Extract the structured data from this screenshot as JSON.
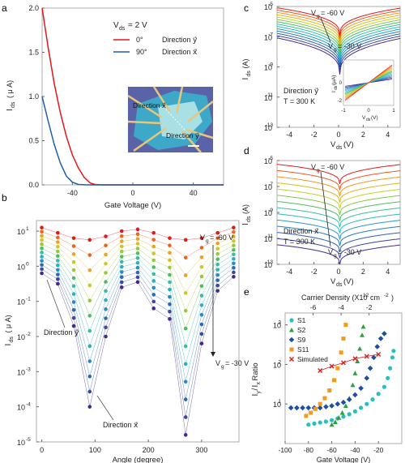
{
  "chart_data": [
    {
      "panel": "a",
      "type": "line",
      "legend_title": "V",
      "legend_title_sub": "ds",
      "legend_title_value": "= 2 V",
      "ylabel": "I",
      "ylabel_sub": "ds",
      "ylabel_unit": "( μ A)",
      "xlabel": "Gate Voltage (V)",
      "xlim": [
        -60,
        60
      ],
      "ylim": [
        0,
        2.0
      ],
      "xticks": [
        "-40",
        "0",
        "40"
      ],
      "yticks": [
        "0.0",
        "0.5",
        "1.0",
        "1.5",
        "2.0"
      ],
      "inset_labels": [
        "Direction x⃗",
        "Direction y⃗"
      ],
      "series": [
        {
          "name": "0°",
          "label": "Direction y⃗",
          "color": "#e8141c",
          "points": [
            [
              -60,
              2.0
            ],
            [
              -56,
              1.55
            ],
            [
              -52,
              1.15
            ],
            [
              -48,
              0.82
            ],
            [
              -44,
              0.55
            ],
            [
              -40,
              0.34
            ],
            [
              -36,
              0.19
            ],
            [
              -32,
              0.08
            ],
            [
              -28,
              0.02
            ],
            [
              -25,
              0.005
            ],
            [
              -20,
              0.0
            ],
            [
              60,
              0.0
            ]
          ]
        },
        {
          "name": "90°",
          "label": "Direction x⃗",
          "color": "#1f5fa8",
          "points": [
            [
              -60,
              1.0
            ],
            [
              -56,
              0.72
            ],
            [
              -52,
              0.46
            ],
            [
              -48,
              0.25
            ],
            [
              -44,
              0.1
            ],
            [
              -40,
              0.03
            ],
            [
              -36,
              0.005
            ],
            [
              -30,
              0.0
            ],
            [
              60,
              0.0
            ]
          ]
        }
      ]
    },
    {
      "panel": "b",
      "type": "scatter",
      "ylabel": "I",
      "ylabel_sub": "ds",
      "ylabel_unit": "( μ A)",
      "xlabel": "Angle (degree)",
      "xlim": [
        -10,
        370
      ],
      "ylim_log10": [
        -5,
        1.3
      ],
      "xticks": [
        "0",
        "100",
        "200",
        "300"
      ],
      "yticks": [
        "10",
        "10",
        "10",
        "10",
        "10",
        "10",
        "10"
      ],
      "ytick_exps": [
        "1",
        "0",
        "-1",
        "-2",
        "-3",
        "-4",
        "-5"
      ],
      "angles": [
        0,
        30,
        60,
        90,
        120,
        150,
        180,
        210,
        240,
        270,
        300,
        330,
        360
      ],
      "vg_levels": 12,
      "top_log": [
        1.1,
        0.95,
        0.8,
        0.75,
        0.85,
        1.0,
        1.05,
        0.95,
        0.8,
        0.75,
        0.8,
        0.95,
        1.1
      ],
      "bottom_log": [
        -0.2,
        -0.5,
        -1.7,
        -4.0,
        -2.0,
        -0.6,
        -0.45,
        -1.2,
        -1.5,
        -4.8,
        -2.2,
        -0.7,
        -0.3
      ],
      "annotations": [
        "V",
        "g",
        "= -60 V",
        "= -30 V",
        "Direction y⃗",
        "Direction x⃗"
      ]
    },
    {
      "panel": "c",
      "type": "line",
      "title": "Direction y⃗",
      "subtitle": "T = 300 K",
      "ylabel": "I",
      "ylabel_sub": "ds",
      "ylabel_unit": " (A)",
      "xlabel": "V",
      "xlabel_sub": "ds",
      "xlabel_unit": " (V)",
      "xlim": [
        -5,
        5
      ],
      "ylim_log10": [
        -13,
        -5
      ],
      "xticks": [
        "-4",
        "-2",
        "0",
        "2",
        "4"
      ],
      "ytick_exps": [
        "-5",
        "-7",
        "-9",
        "-11",
        "-13"
      ],
      "vg_top": "= -60 V",
      "vg_bottom": "= -30 V",
      "curves": 14,
      "edge_top": -5.1,
      "edge_bottom": -7.1,
      "dip_top": -6.9,
      "dip_bottom": -9.5,
      "inset": {
        "ylabel": "I",
        "ylabel_sub": "ds",
        "ylabel_unit": " (μA)",
        "xlabel": "V",
        "xlabel_sub": "ds",
        "xlabel_unit": " (V)",
        "xticks": [
          "-1",
          "0",
          "1"
        ],
        "yticks": [
          "2",
          "0",
          "-2"
        ]
      }
    },
    {
      "panel": "d",
      "type": "line",
      "title": "Direction x⃗",
      "subtitle": "T = 300 K",
      "ylabel": "I",
      "ylabel_sub": "ds",
      "ylabel_unit": " (A)",
      "xlabel": "V",
      "xlabel_sub": "ds",
      "xlabel_unit": " (V)",
      "xlim": [
        -5,
        5
      ],
      "ylim_log10": [
        -13,
        -5
      ],
      "xticks": [
        "-4",
        "-2",
        "0",
        "2",
        "4"
      ],
      "ytick_exps": [
        "-5",
        "-7",
        "-9",
        "-11",
        "-13"
      ],
      "vg_top": "= -60 V",
      "vg_bottom": "= -30 V",
      "curves": 14,
      "edge_top": -5.3,
      "edge_bottom": -11.5,
      "dip_top": -6.8,
      "dip_bottom": -13.0
    },
    {
      "panel": "e",
      "type": "scatter",
      "top_axis_label": "Carrier Density (X10",
      "top_axis_exp": "12",
      "top_axis_unit": "cm",
      "top_axis_unit_exp": "-2",
      "top_axis_close": ")",
      "top_ticks": [
        "-6",
        "-4",
        "-2"
      ],
      "ylabel": "I",
      "ylabel_sub1": "y",
      "ylabel_sub2": "x",
      "ylabel_rest": " Ratio",
      "xlabel": "Gate Voltage (V)",
      "xlim": [
        -100,
        0
      ],
      "ylim_log10": [
        0,
        3.3
      ],
      "xticks": [
        "-100",
        "-80",
        "-60",
        "-40",
        "-20"
      ],
      "ytick_exps": [
        "3",
        "2",
        "1"
      ],
      "series": [
        {
          "name": "S1",
          "color": "#2abfbf",
          "marker": "circle",
          "points": [
            [
              -80,
              3.0
            ],
            [
              -75,
              3.2
            ],
            [
              -70,
              3.4
            ],
            [
              -65,
              3.6
            ],
            [
              -60,
              3.9
            ],
            [
              -55,
              4.3
            ],
            [
              -50,
              4.8
            ],
            [
              -45,
              5.5
            ],
            [
              -40,
              6.5
            ],
            [
              -35,
              8
            ],
            [
              -30,
              10
            ],
            [
              -25,
              13
            ],
            [
              -20,
              18
            ],
            [
              -15,
              27
            ],
            [
              -12,
              45
            ],
            [
              -10,
              80
            ],
            [
              -8,
              150
            ],
            [
              -7,
              220
            ]
          ]
        },
        {
          "name": "S2",
          "color": "#2e9e3e",
          "marker": "triangle",
          "points": [
            [
              -60,
              3
            ],
            [
              -57,
              3.5
            ],
            [
              -54,
              4.5
            ],
            [
              -51,
              6
            ],
            [
              -48,
              9
            ],
            [
              -45,
              14
            ],
            [
              -42,
              30
            ],
            [
              -40,
              60
            ],
            [
              -38,
              120
            ],
            [
              -36,
              250
            ],
            [
              -34,
              550
            ],
            [
              -33,
              900
            ]
          ]
        },
        {
          "name": "S9",
          "color": "#1f4fa0",
          "marker": "diamond",
          "points": [
            [
              -95,
              8
            ],
            [
              -90,
              8
            ],
            [
              -85,
              8
            ],
            [
              -80,
              8
            ],
            [
              -75,
              8
            ],
            [
              -70,
              8
            ],
            [
              -65,
              8.5
            ],
            [
              -60,
              9
            ],
            [
              -55,
              10
            ],
            [
              -50,
              11
            ],
            [
              -45,
              13
            ],
            [
              -40,
              17
            ],
            [
              -35,
              25
            ],
            [
              -30,
              45
            ],
            [
              -27,
              80
            ],
            [
              -24,
              150
            ],
            [
              -21,
              280
            ],
            [
              -18,
              450
            ],
            [
              -15,
              600
            ]
          ]
        },
        {
          "name": "S11",
          "color": "#f59a1b",
          "marker": "square",
          "points": [
            [
              -82,
              5
            ],
            [
              -78,
              6
            ],
            [
              -74,
              7.5
            ],
            [
              -70,
              10
            ],
            [
              -66,
              14
            ],
            [
              -62,
              22
            ],
            [
              -58,
              40
            ],
            [
              -55,
              80
            ],
            [
              -52,
              200
            ],
            [
              -50,
              450
            ],
            [
              -48,
              1000
            ]
          ]
        },
        {
          "name": "Simulated",
          "color": "#d8201c",
          "marker": "x",
          "points": [
            [
              -70,
              70
            ],
            [
              -60,
              90
            ],
            [
              -50,
              110
            ],
            [
              -40,
              140
            ],
            [
              -30,
              160
            ],
            [
              -20,
              180
            ]
          ]
        }
      ]
    }
  ],
  "panel_letters": [
    "a",
    "b",
    "c",
    "d",
    "e"
  ]
}
